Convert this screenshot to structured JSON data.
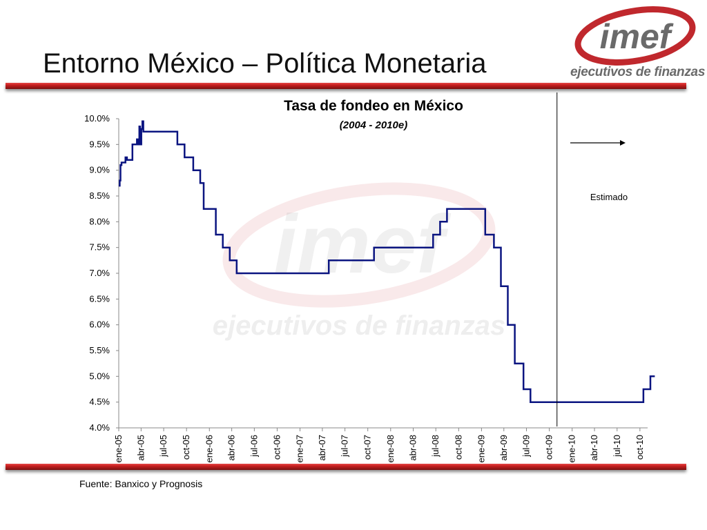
{
  "slide": {
    "title": "Entorno México – Política Monetaria",
    "source": "Fuente: Banxico y Prognosis"
  },
  "logo": {
    "wordmark": "imef",
    "tagline": "ejecutivos de finanzas",
    "colors": {
      "ring": "#c0282d",
      "text": "#6a6a6a"
    }
  },
  "colors": {
    "line": "#0a1480",
    "rule": "#c82020"
  },
  "chart_data": {
    "type": "line",
    "title": "Tasa de fondeo en México",
    "subtitle": "(2004 - 2010e)",
    "annotation": "Estimado",
    "forecast_start": "2009-11",
    "xlabel": "",
    "ylabel": "",
    "x_range": [
      "2005-01",
      "2010-11"
    ],
    "ylim": [
      4.0,
      10.0
    ],
    "y_ticks": [
      4.0,
      4.5,
      5.0,
      5.5,
      6.0,
      6.5,
      7.0,
      7.5,
      8.0,
      8.5,
      9.0,
      9.5,
      10.0
    ],
    "y_tick_labels": [
      "4.0%",
      "4.5%",
      "5.0%",
      "5.5%",
      "6.0%",
      "6.5%",
      "7.0%",
      "7.5%",
      "8.0%",
      "8.5%",
      "9.0%",
      "9.5%",
      "10.0%"
    ],
    "x_ticks": [
      "2005-01",
      "2005-04",
      "2005-07",
      "2005-10",
      "2006-01",
      "2006-04",
      "2006-07",
      "2006-10",
      "2007-01",
      "2007-04",
      "2007-07",
      "2007-10",
      "2008-01",
      "2008-04",
      "2008-07",
      "2008-10",
      "2009-01",
      "2009-04",
      "2009-07",
      "2009-10",
      "2010-01",
      "2010-04",
      "2010-07",
      "2010-10"
    ],
    "x_tick_labels": [
      "ene-05",
      "abr-05",
      "jul-05",
      "oct-05",
      "ene-06",
      "abr-06",
      "jul-06",
      "oct-06",
      "ene-07",
      "abr-07",
      "jul-07",
      "oct-07",
      "ene-08",
      "abr-08",
      "jul-08",
      "oct-08",
      "ene-09",
      "abr-09",
      "jul-09",
      "oct-09",
      "ene-10",
      "abr-10",
      "jul-10",
      "oct-10"
    ],
    "series": [
      {
        "color": "#0a1480",
        "step": true,
        "points": [
          [
            "2005-01-01",
            8.7
          ],
          [
            "2005-01-05",
            8.8
          ],
          [
            "2005-01-08",
            9.1
          ],
          [
            "2005-01-12",
            9.15
          ],
          [
            "2005-01-28",
            9.25
          ],
          [
            "2005-02-03",
            9.2
          ],
          [
            "2005-02-25",
            9.5
          ],
          [
            "2005-03-10",
            9.5
          ],
          [
            "2005-03-15",
            9.6
          ],
          [
            "2005-03-20",
            9.5
          ],
          [
            "2005-03-25",
            9.85
          ],
          [
            "2005-03-28",
            9.5
          ],
          [
            "2005-04-02",
            9.8
          ],
          [
            "2005-04-06",
            9.95
          ],
          [
            "2005-04-10",
            9.75
          ],
          [
            "2005-04-20",
            9.75
          ],
          [
            "2005-08-25",
            9.5
          ],
          [
            "2005-09-23",
            9.25
          ],
          [
            "2005-10-28",
            9.0
          ],
          [
            "2005-11-25",
            8.75
          ],
          [
            "2005-12-09",
            8.25
          ],
          [
            "2006-01-27",
            7.75
          ],
          [
            "2006-02-24",
            7.5
          ],
          [
            "2006-03-24",
            7.25
          ],
          [
            "2006-04-21",
            7.0
          ],
          [
            "2007-04-27",
            7.25
          ],
          [
            "2007-10-26",
            7.5
          ],
          [
            "2008-06-20",
            7.75
          ],
          [
            "2008-07-18",
            8.0
          ],
          [
            "2008-08-15",
            8.25
          ],
          [
            "2009-01-16",
            7.75
          ],
          [
            "2009-02-20",
            7.5
          ],
          [
            "2009-03-20",
            6.75
          ],
          [
            "2009-04-17",
            6.0
          ],
          [
            "2009-05-15",
            5.25
          ],
          [
            "2009-06-19",
            4.75
          ],
          [
            "2009-07-17",
            4.5
          ],
          [
            "2010-10-15",
            4.75
          ],
          [
            "2010-11-12",
            5.0
          ],
          [
            "2010-11-30",
            5.0
          ]
        ]
      }
    ]
  }
}
